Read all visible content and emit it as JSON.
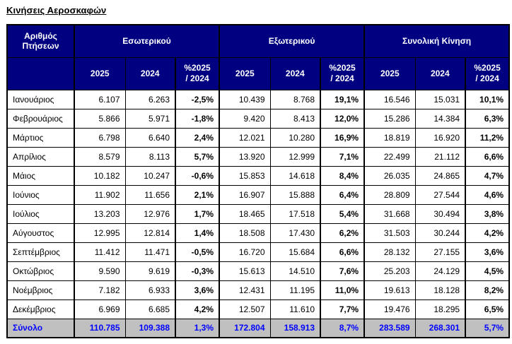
{
  "page_title": "Κινήσεις Αεροσκαφών",
  "colors": {
    "header_bg": "#000080",
    "header_text": "#FFFFFF",
    "total_row_bg": "#C0C0C0",
    "total_row_text": "#0000FF",
    "border": "#000000",
    "body_bg": "#FFFFFF"
  },
  "chart_data": {
    "type": "table",
    "title": "Κινήσεις Αεροσκαφών",
    "corner_header": "Αριθμός\nΠτήσεων",
    "column_groups": [
      "Εσωτερικού",
      "Εξωτερικού",
      "Συνολική Κίνηση"
    ],
    "sub_columns": [
      "2025",
      "2024",
      "%2025\n/ 2024"
    ],
    "rows": [
      {
        "label": "Ιανουάριος",
        "cells": [
          "6.107",
          "6.263",
          "-2,5%",
          "10.439",
          "8.768",
          "19,1%",
          "16.546",
          "15.031",
          "10,1%"
        ]
      },
      {
        "label": "Φεβρουάριος",
        "cells": [
          "5.866",
          "5.971",
          "-1,8%",
          "9.420",
          "8.413",
          "12,0%",
          "15.286",
          "14.384",
          "6,3%"
        ]
      },
      {
        "label": "Μάρτιος",
        "cells": [
          "6.798",
          "6.640",
          "2,4%",
          "12.021",
          "10.280",
          "16,9%",
          "18.819",
          "16.920",
          "11,2%"
        ]
      },
      {
        "label": "Απρίλιος",
        "cells": [
          "8.579",
          "8.113",
          "5,7%",
          "13.920",
          "12.999",
          "7,1%",
          "22.499",
          "21.112",
          "6,6%"
        ]
      },
      {
        "label": "Μάιος",
        "cells": [
          "10.182",
          "10.247",
          "-0,6%",
          "15.853",
          "14.618",
          "8,4%",
          "26.035",
          "24.865",
          "4,7%"
        ]
      },
      {
        "label": "Ιούνιος",
        "cells": [
          "11.902",
          "11.656",
          "2,1%",
          "16.907",
          "15.888",
          "6,4%",
          "28.809",
          "27.544",
          "4,6%"
        ]
      },
      {
        "label": "Ιούλιος",
        "cells": [
          "13.203",
          "12.976",
          "1,7%",
          "18.465",
          "17.518",
          "5,4%",
          "31.668",
          "30.494",
          "3,8%"
        ]
      },
      {
        "label": "Αύγουστος",
        "cells": [
          "12.995",
          "12.814",
          "1,4%",
          "18.508",
          "17.430",
          "6,2%",
          "31.503",
          "30.244",
          "4,2%"
        ]
      },
      {
        "label": "Σεπτέμβριος",
        "cells": [
          "11.412",
          "11.471",
          "-0,5%",
          "16.720",
          "15.684",
          "6,6%",
          "28.132",
          "27.155",
          "3,6%"
        ]
      },
      {
        "label": "Οκτώβριος",
        "cells": [
          "9.590",
          "9.619",
          "-0,3%",
          "15.613",
          "14.510",
          "7,6%",
          "25.203",
          "24.129",
          "4,5%"
        ]
      },
      {
        "label": "Νοέμβριος",
        "cells": [
          "7.182",
          "6.933",
          "3,6%",
          "12.431",
          "11.195",
          "11,0%",
          "19.613",
          "18.128",
          "8,2%"
        ]
      },
      {
        "label": "Δεκέμβριος",
        "cells": [
          "6.969",
          "6.685",
          "4,2%",
          "12.507",
          "11.610",
          "7,7%",
          "19.476",
          "18.295",
          "6,5%"
        ]
      }
    ],
    "total_row": {
      "label": "Σύνολο",
      "cells": [
        "110.785",
        "109.388",
        "1,3%",
        "172.804",
        "158.913",
        "8,7%",
        "283.589",
        "268.301",
        "5,7%"
      ]
    }
  }
}
